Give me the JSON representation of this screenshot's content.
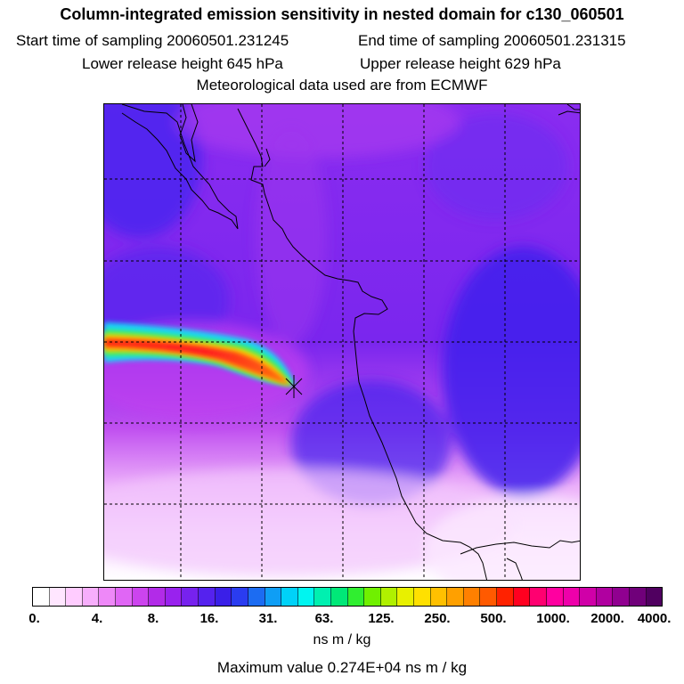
{
  "header": {
    "title": "Column-integrated emission sensitivity in nested domain for c130_060501",
    "start_label": "Start time of sampling 20060501.231245",
    "end_label": "End time of sampling 20060501.231315",
    "lower_label": "Lower release height  645 hPa",
    "upper_label": "Upper release height  629 hPa",
    "met_label": "Meteorological data used are from ECMWF"
  },
  "legend": {
    "tick_labels": [
      "0.",
      "4.",
      "8.",
      "16.",
      "31.",
      "63.",
      "125.",
      "250.",
      "500.",
      "1000.",
      "2000.",
      "4000."
    ],
    "colors": [
      "#ffffff",
      "#ffe6ff",
      "#ffccff",
      "#f7aefc",
      "#ee88f8",
      "#e066f5",
      "#cc44ee",
      "#b22be8",
      "#9922ee",
      "#7722ee",
      "#5522ee",
      "#3a1fe8",
      "#2a3cf0",
      "#1c6cf2",
      "#0f9ef5",
      "#00d2f8",
      "#00f5f0",
      "#00f0b0",
      "#00e878",
      "#30ee30",
      "#70f000",
      "#b0f000",
      "#e8f000",
      "#ffe000",
      "#ffc000",
      "#ffa000",
      "#ff8000",
      "#ff5a00",
      "#ff2200",
      "#ff0020",
      "#ff0070",
      "#ff00a0",
      "#ee00aa",
      "#d000a8",
      "#b000a0",
      "#900090",
      "#70007a",
      "#500060"
    ],
    "unit": "ns m / kg",
    "max_label": "Maximum value  0.274E+04 ns m / kg"
  },
  "map": {
    "max_value": 2740,
    "release_marker": "release-point-icon"
  }
}
